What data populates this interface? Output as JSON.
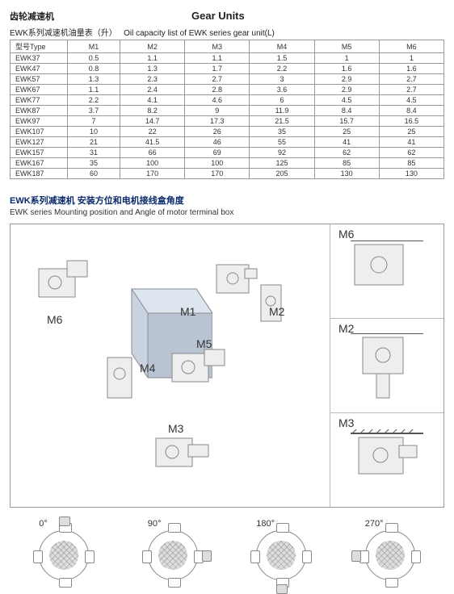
{
  "header": {
    "cn_left": "齿轮减速机",
    "en_title": "Gear Units"
  },
  "table": {
    "title_cn": "EWK系列减速机油量表（升）",
    "title_en": "Oil capacity list of EWK series gear unit(L)",
    "columns": [
      "型号Type",
      "M1",
      "M2",
      "M3",
      "M4",
      "M5",
      "M6"
    ],
    "rows": [
      [
        "EWK37",
        "0.5",
        "1.1",
        "1.1",
        "1.5",
        "1",
        "1"
      ],
      [
        "EWK47",
        "0.8",
        "1.3",
        "1.7",
        "2.2",
        "1.6",
        "1.6"
      ],
      [
        "EWK57",
        "1.3",
        "2.3",
        "2.7",
        "3",
        "2.9",
        "2.7"
      ],
      [
        "EWK67",
        "1.1",
        "2.4",
        "2.8",
        "3.6",
        "2.9",
        "2.7"
      ],
      [
        "EWK77",
        "2.2",
        "4.1",
        "4.6",
        "6",
        "4.5",
        "4.5"
      ],
      [
        "EWK87",
        "3.7",
        "8.2",
        "9",
        "11.9",
        "8.4",
        "8.4"
      ],
      [
        "EWK97",
        "7",
        "14.7",
        "17.3",
        "21.5",
        "15.7",
        "16.5"
      ],
      [
        "EWK107",
        "10",
        "22",
        "26",
        "35",
        "25",
        "25"
      ],
      [
        "EWK127",
        "21",
        "41.5",
        "46",
        "55",
        "41",
        "41"
      ],
      [
        "EWK157",
        "31",
        "66",
        "69",
        "92",
        "62",
        "62"
      ],
      [
        "EWK167",
        "35",
        "100",
        "100",
        "125",
        "85",
        "85"
      ],
      [
        "EWK187",
        "60",
        "170",
        "170",
        "205",
        "130",
        "130"
      ]
    ]
  },
  "section2": {
    "cn": "EWK系列减速机 安装方位和电机接线盒角度",
    "en": "EWK series Mounting position and Angle of motor terminal box"
  },
  "mount_labels": {
    "m1": "M1",
    "m2": "M2",
    "m3": "M3",
    "m4": "M4",
    "m5": "M5",
    "m6": "M6",
    "r_m6": "M6",
    "r_m2": "M2",
    "r_m3": "M3"
  },
  "angles": {
    "a0": "0°",
    "a90": "90°",
    "a180": "180°",
    "a270": "270°"
  },
  "colors": {
    "border": "#999999",
    "text": "#333333",
    "heading_blue": "#0a2a6b",
    "gear_fill": "#eeeeee",
    "gear_stroke": "#888888"
  }
}
